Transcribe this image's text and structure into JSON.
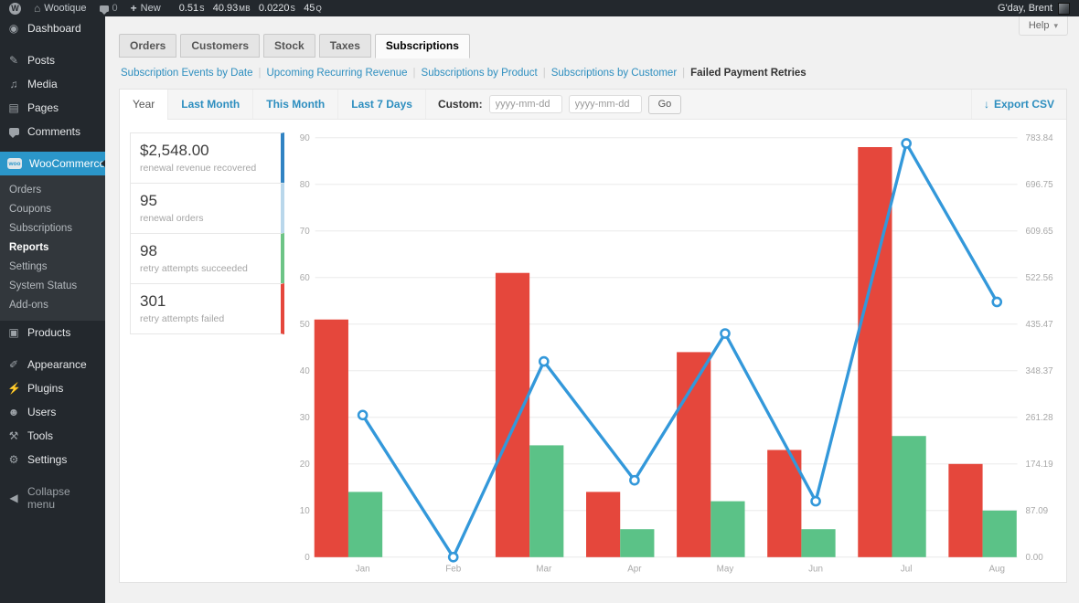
{
  "icons": {
    "wp": "W",
    "home": "⌂",
    "plus": "+",
    "dropdown": "▾",
    "export_arrow": "↓",
    "comments_bubble": "bubble",
    "avatar": "user-photo"
  },
  "admin_bar": {
    "site_name": "Wootique",
    "comments_count": "0",
    "new_label": "New",
    "greeting": "G'day, Brent",
    "perf": [
      {
        "value": "0.51",
        "unit": "s"
      },
      {
        "value": "40.93",
        "unit": "MB"
      },
      {
        "value": "0.0220",
        "unit": "s"
      },
      {
        "value": "45",
        "unit": "Q"
      }
    ]
  },
  "help": {
    "label": "Help"
  },
  "sidebar": {
    "items": [
      {
        "label": "Dashboard",
        "icon": "◉"
      },
      {
        "label": "Posts",
        "icon": "✎"
      },
      {
        "label": "Media",
        "icon": "♫"
      },
      {
        "label": "Pages",
        "icon": "▤"
      },
      {
        "label": "Comments",
        "icon": "bubble"
      },
      {
        "label": "WooCommerce",
        "icon": "woo"
      },
      {
        "label": "Products",
        "icon": "▣"
      },
      {
        "label": "Appearance",
        "icon": "✐"
      },
      {
        "label": "Plugins",
        "icon": "⚡"
      },
      {
        "label": "Users",
        "icon": "☻"
      },
      {
        "label": "Tools",
        "icon": "⚒"
      },
      {
        "label": "Settings",
        "icon": "⚙"
      },
      {
        "label": "Collapse menu",
        "icon": "◀"
      }
    ],
    "submenu": [
      {
        "label": "Orders"
      },
      {
        "label": "Coupons"
      },
      {
        "label": "Subscriptions"
      },
      {
        "label": "Reports",
        "current": true
      },
      {
        "label": "Settings"
      },
      {
        "label": "System Status"
      },
      {
        "label": "Add-ons"
      }
    ]
  },
  "tabs": {
    "items": [
      {
        "label": "Orders"
      },
      {
        "label": "Customers"
      },
      {
        "label": "Stock"
      },
      {
        "label": "Taxes"
      },
      {
        "label": "Subscriptions",
        "active": true
      }
    ]
  },
  "report_nav": {
    "separator": "|",
    "links": [
      {
        "label": "Subscription Events by Date"
      },
      {
        "label": "Upcoming Recurring Revenue"
      },
      {
        "label": "Subscriptions by Product"
      },
      {
        "label": "Subscriptions by Customer"
      },
      {
        "label": "Failed Payment Retries",
        "current": true
      }
    ]
  },
  "range_bar": {
    "ranges": [
      {
        "label": "Year",
        "active": true
      },
      {
        "label": "Last Month"
      },
      {
        "label": "This Month"
      },
      {
        "label": "Last 7 Days"
      }
    ],
    "custom_label": "Custom:",
    "date_placeholder": "yyyy-mm-dd",
    "date_from_value": "",
    "date_to_value": "",
    "go_label": "Go",
    "export_label": "Export CSV"
  },
  "summary": {
    "cards": [
      {
        "value": "$2,548.00",
        "label": "renewal revenue recovered",
        "accent": "#3183c3"
      },
      {
        "value": "95",
        "label": "renewal orders",
        "accent": "#b9d7eb"
      },
      {
        "value": "98",
        "label": "retry attempts succeeded",
        "accent": "#6dc486"
      },
      {
        "value": "301",
        "label": "retry attempts failed",
        "accent": "#e5473c"
      }
    ]
  },
  "chart_data": {
    "type": "bar+line",
    "categories": [
      "Jan",
      "Feb",
      "Mar",
      "Apr",
      "May",
      "Jun",
      "Jul",
      "Aug"
    ],
    "series": [
      {
        "name": "retry attempts failed",
        "type": "bar",
        "axis": "left",
        "color": "#e5473c",
        "values": [
          51,
          0,
          61,
          14,
          44,
          23,
          88,
          20
        ]
      },
      {
        "name": "retry attempts succeeded",
        "type": "bar",
        "axis": "left",
        "color": "#5bc287",
        "values": [
          14,
          0,
          24,
          6,
          12,
          6,
          26,
          10
        ]
      },
      {
        "name": "renewal revenue recovered",
        "type": "line",
        "axis": "right",
        "color": "#3398da",
        "values": [
          265.55,
          0.0,
          365.79,
          143.7,
          418.05,
          104.51,
          773.37,
          477.03
        ]
      }
    ],
    "left_axis": {
      "min": 0,
      "max": 90,
      "step": 10,
      "ticks": [
        0,
        10,
        20,
        30,
        40,
        50,
        60,
        70,
        80,
        90
      ]
    },
    "right_axis": {
      "min": 0,
      "max": 783.84,
      "ticks": [
        "0.00",
        "87.09",
        "174.19",
        "261.28",
        "348.37",
        "435.47",
        "522.56",
        "609.65",
        "696.75",
        "783.84"
      ]
    },
    "grid": true,
    "legend": "none"
  }
}
